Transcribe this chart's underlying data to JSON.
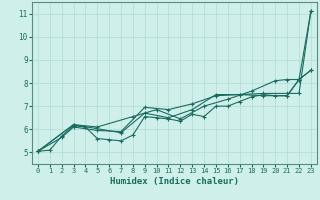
{
  "title": "",
  "xlabel": "Humidex (Indice chaleur)",
  "bg_color": "#cff0ea",
  "grid_color": "#b8ddd8",
  "line_color": "#1a6b60",
  "spine_color": "#5a8a80",
  "xlim": [
    -0.5,
    23.5
  ],
  "ylim": [
    4.5,
    11.5
  ],
  "xticks": [
    0,
    1,
    2,
    3,
    4,
    5,
    6,
    7,
    8,
    9,
    10,
    11,
    12,
    13,
    14,
    15,
    16,
    17,
    18,
    19,
    20,
    21,
    22,
    23
  ],
  "yticks": [
    5,
    6,
    7,
    8,
    9,
    10,
    11
  ],
  "series": [
    {
      "x": [
        0,
        1,
        2,
        3,
        4,
        5,
        6,
        7,
        8,
        9,
        10,
        11,
        12,
        13,
        14,
        15,
        16,
        17,
        18,
        19,
        20,
        21,
        22,
        23
      ],
      "y": [
        5.05,
        5.1,
        5.7,
        6.15,
        6.1,
        5.6,
        5.55,
        5.5,
        5.75,
        6.55,
        6.5,
        6.45,
        6.35,
        6.65,
        6.55,
        7.0,
        7.0,
        7.2,
        7.4,
        7.5,
        7.45,
        7.45,
        8.15,
        8.55
      ],
      "style": "solid",
      "marker": true
    },
    {
      "x": [
        0,
        3,
        5,
        8,
        10,
        12,
        14,
        16,
        18,
        20,
        21,
        22,
        23
      ],
      "y": [
        5.05,
        6.2,
        6.1,
        6.55,
        6.85,
        6.45,
        7.0,
        7.3,
        7.65,
        8.1,
        8.15,
        8.15,
        11.1
      ],
      "style": "solid",
      "marker": true
    },
    {
      "x": [
        0,
        3,
        7,
        9,
        11,
        13,
        15,
        17,
        19,
        21,
        22,
        23
      ],
      "y": [
        5.05,
        6.2,
        5.85,
        6.7,
        6.5,
        6.85,
        7.5,
        7.5,
        7.55,
        7.55,
        7.55,
        11.1
      ],
      "style": "solid",
      "marker": true
    },
    {
      "x": [
        0,
        2,
        3,
        5,
        7,
        9,
        11,
        13,
        15,
        17,
        19,
        21,
        22,
        23
      ],
      "y": [
        5.05,
        5.65,
        6.1,
        5.95,
        5.9,
        6.95,
        6.85,
        7.1,
        7.45,
        7.5,
        7.45,
        7.45,
        8.15,
        8.55
      ],
      "style": "solid",
      "marker": true
    }
  ]
}
